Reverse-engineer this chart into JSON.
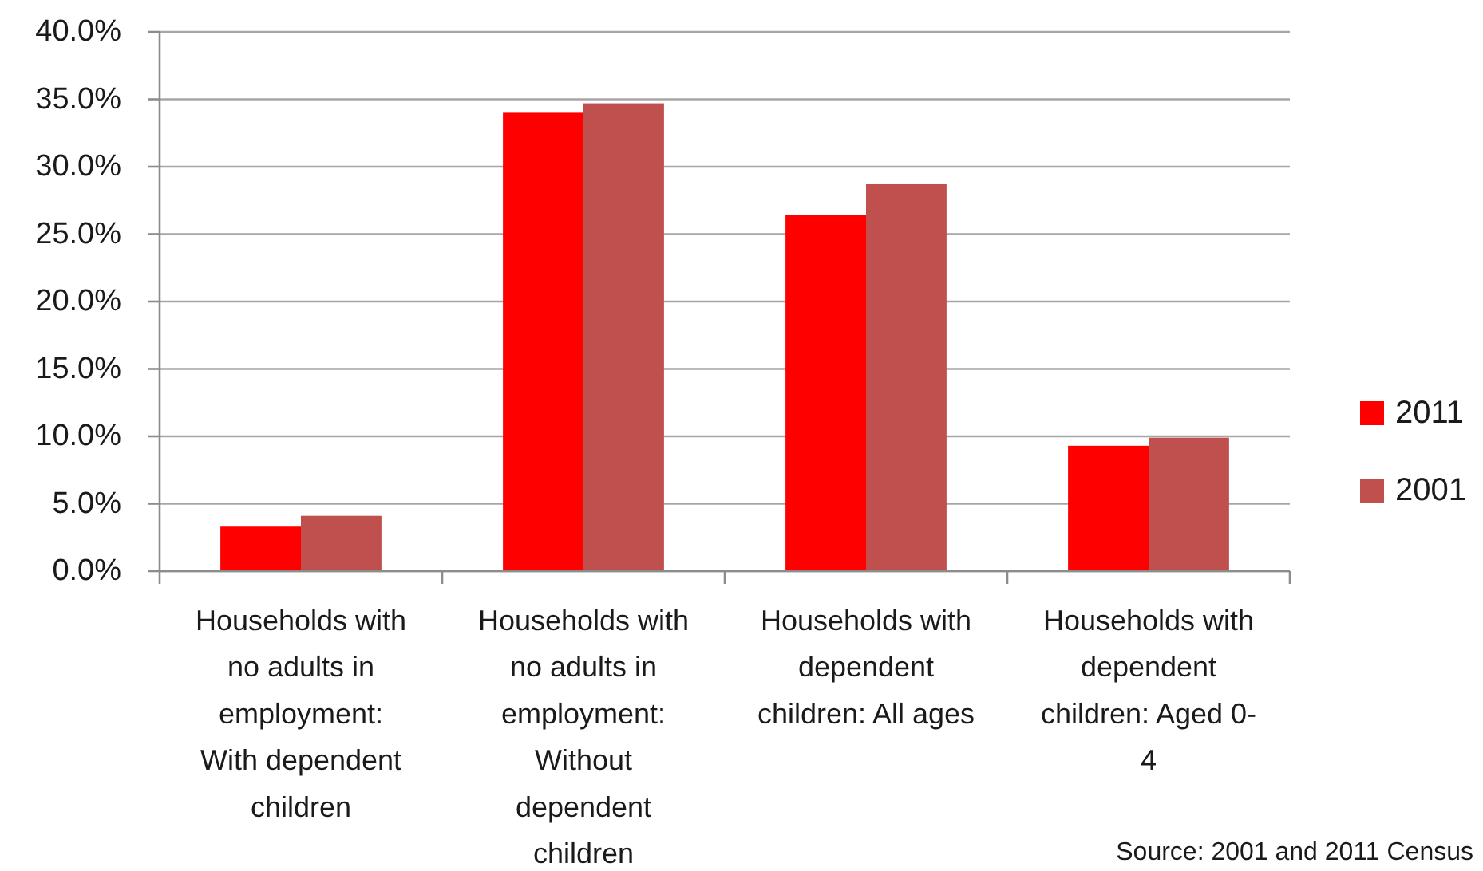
{
  "chart_data": {
    "type": "bar",
    "categories": [
      "Households with no adults in employment: With dependent children",
      "Households with no adults in employment: Without dependent children",
      "Households with dependent children: All ages",
      "Households with dependent children: Aged 0-4"
    ],
    "series": [
      {
        "name": "2011",
        "color": "#ff0000",
        "values": [
          3.3,
          34.0,
          26.4,
          9.3
        ]
      },
      {
        "name": "2001",
        "color": "#c0504d",
        "values": [
          4.1,
          34.7,
          28.7,
          9.9
        ]
      }
    ],
    "ylim": [
      0,
      40
    ],
    "yticks": [
      {
        "value": 0,
        "label": "0.0%"
      },
      {
        "value": 5,
        "label": "5.0%"
      },
      {
        "value": 10,
        "label": "10.0%"
      },
      {
        "value": 15,
        "label": "15.0%"
      },
      {
        "value": 20,
        "label": "20.0%"
      },
      {
        "value": 25,
        "label": "25.0%"
      },
      {
        "value": 30,
        "label": "30.0%"
      },
      {
        "value": 35,
        "label": "35.0%"
      },
      {
        "value": 40,
        "label": "40.0%"
      }
    ],
    "grid": "y",
    "legend": "right",
    "annotations": [
      "Source: 2001 and 2011 Census"
    ]
  }
}
